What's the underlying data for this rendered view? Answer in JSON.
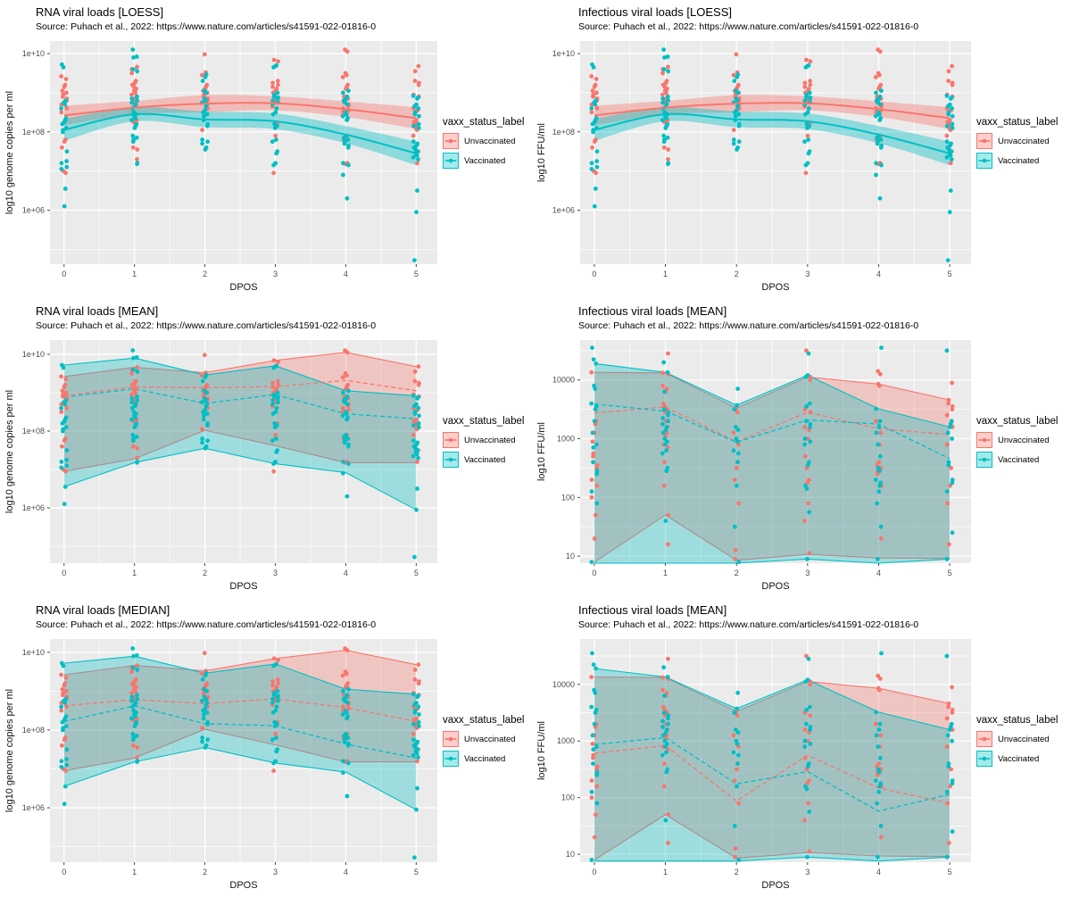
{
  "colors": {
    "unvaccinated": "#F8766D",
    "vaccinated": "#00BFC4",
    "panel_background": "#EBEBEB",
    "gridline": "#FFFFFF",
    "axis_text": "#4D4D4D",
    "tick_mark": "#333333"
  },
  "legend": {
    "title": "vaxx_status_label",
    "items": [
      {
        "key": "unvaccinated",
        "label": "Unvaccinated"
      },
      {
        "key": "vaccinated",
        "label": "Vaccinated"
      }
    ]
  },
  "scatter_sets": {
    "rna": {
      "x_values": [
        0,
        1,
        2,
        3,
        4,
        5
      ],
      "unvaccinated": [
        [
          9.42,
          9.35,
          9.2,
          9.15,
          9.05,
          9.0,
          8.95,
          8.9,
          8.85,
          8.8,
          8.7,
          8.6,
          8.5,
          7.8,
          7.75,
          7.6,
          7.0,
          6.95
        ],
        [
          9.66,
          9.6,
          9.55,
          9.5,
          9.3,
          9.25,
          9.2,
          9.15,
          9.1,
          9.05,
          9.0,
          8.95,
          8.9,
          8.85,
          8.8,
          8.75,
          8.3,
          8.25,
          7.6,
          7.55,
          7.3
        ],
        [
          9.98,
          9.52,
          9.45,
          9.2,
          9.15,
          9.1,
          9.05,
          9.0,
          8.95,
          8.9,
          8.85,
          8.8,
          8.75,
          8.6,
          8.05
        ],
        [
          9.84,
          9.8,
          9.3,
          9.25,
          9.2,
          9.15,
          9.1,
          9.05,
          9.0,
          8.95,
          8.85,
          8.8,
          8.75,
          8.65,
          8.2,
          8.15,
          7.9,
          6.95
        ],
        [
          10.1,
          10.05,
          9.5,
          9.45,
          9.4,
          9.2,
          9.15,
          9.1,
          8.9,
          8.85,
          8.8,
          8.75,
          8.7,
          8.65,
          8.6,
          8.55,
          8.5,
          7.9,
          7.85,
          7.8,
          7.75,
          7.2,
          7.18
        ],
        [
          9.68,
          9.55,
          9.3,
          9.25,
          9.2,
          8.95,
          8.9,
          8.6,
          8.55,
          8.3,
          8.25,
          8.2,
          8.15,
          8.1,
          8.05,
          7.9,
          7.5,
          7.2
        ]
      ],
      "vaccinated": [
        [
          9.72,
          9.65,
          8.8,
          8.75,
          8.7,
          8.6,
          8.35,
          8.3,
          8.25,
          8.2,
          8.1,
          8.05,
          8.0,
          7.5,
          7.25,
          7.2,
          7.1,
          7.05,
          6.55,
          6.1
        ],
        [
          10.1,
          9.92,
          9.9,
          9.6,
          9.55,
          8.9,
          8.85,
          8.8,
          8.75,
          8.7,
          8.65,
          8.6,
          8.5,
          8.45,
          8.4,
          8.35,
          8.3,
          8.2,
          8.15,
          8.1,
          7.9,
          7.85,
          7.8,
          7.75,
          7.2,
          7.18
        ],
        [
          9.46,
          9.4,
          9.3,
          9.05,
          9.0,
          8.85,
          8.8,
          8.75,
          8.7,
          8.65,
          8.55,
          8.5,
          8.45,
          8.4,
          8.3,
          8.2,
          8.15,
          7.8,
          7.75,
          7.7,
          7.6,
          7.55
        ],
        [
          9.7,
          9.68,
          9.65,
          9.0,
          8.95,
          8.9,
          8.88,
          8.85,
          8.8,
          8.75,
          8.7,
          8.6,
          8.5,
          8.45,
          8.2,
          8.15,
          8.1,
          7.8,
          7.75,
          7.5,
          7.45,
          7.2,
          7.15
        ],
        [
          9.05,
          9.0,
          8.9,
          8.85,
          8.8,
          8.75,
          8.7,
          8.5,
          8.45,
          8.4,
          8.35,
          8.3,
          7.9,
          7.85,
          7.8,
          7.75,
          7.7,
          7.65,
          7.6,
          7.2,
          7.15,
          6.9,
          6.3
        ],
        [
          8.92,
          8.88,
          8.85,
          8.7,
          8.65,
          8.6,
          8.5,
          8.45,
          8.4,
          8.2,
          8.15,
          8.1,
          7.75,
          7.7,
          7.65,
          7.6,
          7.55,
          7.5,
          7.45,
          7.4,
          7.35,
          7.3,
          6.5,
          5.95,
          4.72
        ]
      ]
    },
    "ffu": {
      "x_values": [
        0,
        1,
        2,
        3,
        4,
        5
      ],
      "unvaccinated": [
        [
          4.13,
          3.3,
          3.25,
          3.1,
          2.95,
          2.9,
          2.75,
          2.7,
          2.55,
          2.5,
          2.3,
          2.2,
          2.0,
          1.7,
          1.3
        ],
        [
          4.45,
          4.12,
          4.1,
          3.9,
          3.85,
          3.8,
          3.6,
          3.55,
          3.5,
          3.45,
          3.3,
          3.25,
          3.2,
          3.1,
          3.05,
          2.9,
          2.85,
          2.6,
          2.2,
          1.7,
          1.2
        ],
        [
          3.52,
          3.45,
          3.1,
          2.9,
          2.6,
          2.5,
          2.3,
          1.9,
          1.1,
          0.95
        ],
        [
          4.5,
          4.05,
          4.0,
          3.5,
          3.45,
          3.2,
          3.15,
          3.0,
          2.7,
          2.5,
          2.3,
          2.25,
          1.9,
          1.6,
          1.05
        ],
        [
          4.15,
          4.1,
          3.93,
          3.9,
          3.3,
          3.1,
          2.9,
          2.6,
          2.55,
          2.5,
          2.45,
          2.4,
          2.2,
          1.3
        ],
        [
          3.95,
          3.66,
          3.6,
          3.55,
          3.5,
          3.4,
          3.2,
          2.9,
          2.5,
          2.2,
          1.9,
          1.2
        ]
      ],
      "vaccinated": [
        [
          4.55,
          4.35,
          4.28,
          3.9,
          3.85,
          3.6,
          3.55,
          3.5,
          3.3,
          3.1,
          2.9,
          2.85,
          2.6,
          2.45,
          2.4,
          2.1,
          1.9,
          0.9
        ],
        [
          4.3,
          4.13,
          3.8,
          3.5,
          3.45,
          3.4,
          3.35,
          3.3,
          3.25,
          3.2,
          3.15,
          3.1,
          3.0,
          2.95,
          2.9,
          2.8,
          2.75,
          2.5,
          2.45,
          1.6
        ],
        [
          3.85,
          3.57,
          3.5,
          3.2,
          3.15,
          3.0,
          2.95,
          2.8,
          2.75,
          2.6,
          2.2,
          1.5,
          0.9
        ],
        [
          4.45,
          4.08,
          4.05,
          3.6,
          3.55,
          3.3,
          3.25,
          3.2,
          3.0,
          2.95,
          2.9,
          2.6,
          2.55,
          2.2,
          2.15,
          1.75,
          0.95
        ],
        [
          4.55,
          3.51,
          3.3,
          3.2,
          3.1,
          2.9,
          2.7,
          2.5,
          2.45,
          2.3,
          2.25,
          2.2,
          2.1,
          1.9,
          1.5,
          0.95
        ],
        [
          4.5,
          3.3,
          3.25,
          3.2,
          3.1,
          3.0,
          2.6,
          2.55,
          2.3,
          2.25,
          2.1,
          1.4,
          0.95
        ]
      ]
    }
  },
  "chart_data": [
    {
      "id": "rna-loess",
      "type": "scatter",
      "title": "RNA viral loads [LOESS]",
      "subtitle": "Source: Puhach et al., 2022: https://www.nature.com/articles/s41591-022-01816-0",
      "xlabel": "DPOS",
      "ylabel": "log10 genome copies per ml",
      "x_ticks": [
        "0",
        "1",
        "2",
        "3",
        "4",
        "5"
      ],
      "y_ticks": [
        {
          "value": 6,
          "label": "1e+06"
        },
        {
          "value": 8,
          "label": "1e+08"
        },
        {
          "value": 10,
          "label": "1e+10"
        }
      ],
      "y_minor": [
        5,
        7,
        9
      ],
      "y_domain": [
        4.62,
        10.32
      ],
      "x_domain": [
        -0.2,
        5.3
      ],
      "points": "rna",
      "loess": {
        "unvaccinated": {
          "mean": [
            8.42,
            8.62,
            8.72,
            8.73,
            8.58,
            8.35
          ],
          "ci": [
            0.25,
            0.17,
            0.22,
            0.18,
            0.2,
            0.28
          ]
        },
        "vaccinated": {
          "mean": [
            8.05,
            8.45,
            8.32,
            8.27,
            7.93,
            7.45
          ],
          "ci": [
            0.28,
            0.18,
            0.2,
            0.2,
            0.22,
            0.3
          ]
        }
      }
    },
    {
      "id": "inf-loess",
      "type": "scatter",
      "title": "Infectious viral loads [LOESS]",
      "subtitle": "Source: Puhach et al., 2022: https://www.nature.com/articles/s41591-022-01816-0",
      "xlabel": "DPOS",
      "ylabel": "log10 FFU/ml",
      "x_ticks": [
        "0",
        "1",
        "2",
        "3",
        "4",
        "5"
      ],
      "y_ticks": [
        {
          "value": 6,
          "label": "1e+06"
        },
        {
          "value": 8,
          "label": "1e+08"
        },
        {
          "value": 10,
          "label": "1e+10"
        }
      ],
      "y_minor": [
        5,
        7,
        9
      ],
      "y_domain": [
        4.62,
        10.32
      ],
      "x_domain": [
        -0.2,
        5.3
      ],
      "points": "rna",
      "loess": {
        "unvaccinated": {
          "mean": [
            8.42,
            8.62,
            8.72,
            8.73,
            8.58,
            8.35
          ],
          "ci": [
            0.25,
            0.17,
            0.22,
            0.18,
            0.2,
            0.28
          ]
        },
        "vaccinated": {
          "mean": [
            8.05,
            8.45,
            8.32,
            8.27,
            7.93,
            7.45
          ],
          "ci": [
            0.28,
            0.18,
            0.2,
            0.2,
            0.22,
            0.3
          ]
        }
      }
    },
    {
      "id": "rna-mean",
      "type": "scatter",
      "title": "RNA viral loads [MEAN]",
      "subtitle": "Source: Puhach et al., 2022: https://www.nature.com/articles/s41591-022-01816-0",
      "xlabel": "DPOS",
      "ylabel": "log10 genome copies per ml",
      "x_ticks": [
        "0",
        "1",
        "2",
        "3",
        "4",
        "5"
      ],
      "y_ticks": [
        {
          "value": 6,
          "label": "1e+06"
        },
        {
          "value": 8,
          "label": "1e+08"
        },
        {
          "value": 10,
          "label": "1e+10"
        }
      ],
      "y_minor": [
        5,
        7,
        9
      ],
      "y_domain": [
        4.56,
        10.37
      ],
      "x_domain": [
        -0.2,
        5.3
      ],
      "points": "rna",
      "envelope": {
        "unvaccinated": {
          "max": [
            9.42,
            9.66,
            9.52,
            9.84,
            10.05,
            9.68
          ],
          "min": [
            6.95,
            7.28,
            8.02,
            7.62,
            7.18,
            7.18
          ],
          "center": [
            8.92,
            9.15,
            9.13,
            9.16,
            9.32,
            9.05
          ]
        },
        "vaccinated": {
          "max": [
            9.72,
            9.9,
            9.46,
            9.7,
            9.05,
            8.92
          ],
          "min": [
            6.55,
            7.18,
            7.55,
            7.15,
            6.92,
            5.95
          ],
          "center": [
            8.88,
            9.1,
            8.72,
            8.95,
            8.45,
            8.32
          ]
        }
      }
    },
    {
      "id": "inf-mean",
      "type": "scatter",
      "title": "Infectious viral loads [MEAN]",
      "subtitle": "Source: Puhach et al., 2022: https://www.nature.com/articles/s41591-022-01816-0",
      "xlabel": "DPOS",
      "ylabel": "log10 FFU/ml",
      "x_ticks": [
        "0",
        "1",
        "2",
        "3",
        "4",
        "5"
      ],
      "y_ticks": [
        {
          "value": 1,
          "label": "10"
        },
        {
          "value": 2,
          "label": "100"
        },
        {
          "value": 3,
          "label": "1000"
        },
        {
          "value": 4,
          "label": "10000"
        }
      ],
      "y_minor": [
        1.5,
        2.5,
        3.5,
        4.5
      ],
      "y_domain": [
        0.88,
        4.68
      ],
      "x_domain": [
        -0.2,
        5.3
      ],
      "points": "ffu",
      "envelope": {
        "unvaccinated": {
          "max": [
            4.13,
            4.12,
            3.52,
            4.05,
            3.93,
            3.66
          ],
          "min": [
            0.9,
            1.7,
            0.93,
            1.03,
            0.97,
            0.96
          ],
          "center": [
            3.44,
            3.54,
            2.95,
            3.45,
            3.17,
            3.07
          ]
        },
        "vaccinated": {
          "max": [
            4.28,
            4.13,
            3.57,
            4.08,
            3.51,
            3.2
          ],
          "min": [
            0.88,
            0.88,
            0.88,
            0.95,
            0.88,
            0.95
          ],
          "center": [
            3.59,
            3.47,
            2.94,
            3.32,
            3.25,
            2.66
          ]
        }
      }
    },
    {
      "id": "rna-median",
      "type": "scatter",
      "title": "RNA viral loads [MEDIAN]",
      "subtitle": "Source: Puhach et al., 2022: https://www.nature.com/articles/s41591-022-01816-0",
      "xlabel": "DPOS",
      "ylabel": "log10 genome copies per ml",
      "x_ticks": [
        "0",
        "1",
        "2",
        "3",
        "4",
        "5"
      ],
      "y_ticks": [
        {
          "value": 6,
          "label": "1e+06"
        },
        {
          "value": 8,
          "label": "1e+08"
        },
        {
          "value": 10,
          "label": "1e+10"
        }
      ],
      "y_minor": [
        5,
        7,
        9
      ],
      "y_domain": [
        4.6,
        10.34
      ],
      "x_domain": [
        -0.2,
        5.3
      ],
      "points": "rna",
      "envelope": {
        "unvaccinated": {
          "max": [
            9.42,
            9.66,
            9.52,
            9.84,
            10.05,
            9.68
          ],
          "min": [
            6.95,
            7.28,
            8.02,
            7.62,
            7.18,
            7.18
          ],
          "center": [
            8.62,
            8.78,
            8.68,
            8.8,
            8.58,
            8.22
          ]
        },
        "vaccinated": {
          "max": [
            9.72,
            9.9,
            9.46,
            9.7,
            9.05,
            8.92
          ],
          "min": [
            6.55,
            7.18,
            7.55,
            7.15,
            6.92,
            5.95
          ],
          "center": [
            8.22,
            8.62,
            8.16,
            8.11,
            7.64,
            7.28
          ]
        }
      }
    },
    {
      "id": "inf-mean-2",
      "type": "scatter",
      "title": "Infectious viral loads [MEAN]",
      "subtitle": "Source: Puhach et al., 2022: https://www.nature.com/articles/s41591-022-01816-0",
      "xlabel": "DPOS",
      "ylabel": "log10 FFU/ml",
      "x_ticks": [
        "0",
        "1",
        "2",
        "3",
        "4",
        "5"
      ],
      "y_ticks": [
        {
          "value": 1,
          "label": "10"
        },
        {
          "value": 2,
          "label": "100"
        },
        {
          "value": 3,
          "label": "1000"
        },
        {
          "value": 4,
          "label": "10000"
        }
      ],
      "y_minor": [
        1.5,
        2.5,
        3.5,
        4.5
      ],
      "y_domain": [
        0.86,
        4.8
      ],
      "x_domain": [
        -0.2,
        5.3
      ],
      "points": "ffu",
      "envelope": {
        "unvaccinated": {
          "max": [
            4.13,
            4.12,
            3.52,
            4.05,
            3.93,
            3.66
          ],
          "min": [
            0.9,
            1.7,
            0.93,
            1.03,
            0.97,
            0.96
          ],
          "center": [
            2.78,
            2.92,
            1.94,
            2.75,
            2.17,
            1.9
          ]
        },
        "vaccinated": {
          "max": [
            4.28,
            4.13,
            3.57,
            4.08,
            3.51,
            3.2
          ],
          "min": [
            0.88,
            0.88,
            0.88,
            0.95,
            0.88,
            0.95
          ],
          "center": [
            2.94,
            3.06,
            2.24,
            2.46,
            1.76,
            2.06
          ]
        }
      }
    }
  ]
}
